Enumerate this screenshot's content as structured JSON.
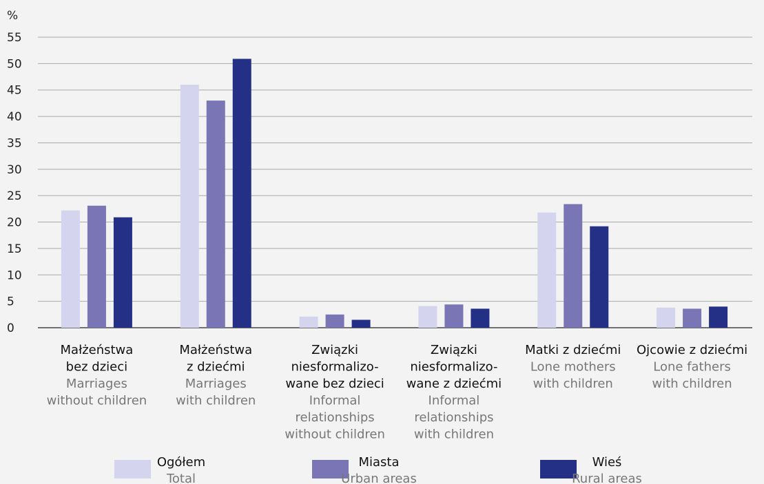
{
  "chart_data": {
    "type": "bar",
    "y_unit_label": "%",
    "ylim": [
      0,
      55
    ],
    "yticks": [
      0,
      5,
      10,
      15,
      20,
      25,
      30,
      35,
      40,
      45,
      50,
      55
    ],
    "grid": true,
    "legend_position": "bottom",
    "categories": [
      {
        "pl": [
          "Małżeństwa",
          "bez dzieci"
        ],
        "en": [
          "Marriages",
          "without children"
        ]
      },
      {
        "pl": [
          "Małżeństwa",
          "z dziećmi"
        ],
        "en": [
          "Marriages",
          "with children"
        ]
      },
      {
        "pl": [
          "Związki",
          "niesformalizo-",
          "wane bez dzieci"
        ],
        "en": [
          "Informal",
          "relationships",
          "without children"
        ]
      },
      {
        "pl": [
          "Związki",
          "niesformalizo-",
          "wane z dziećmi"
        ],
        "en": [
          "Informal",
          "relationships",
          "with children"
        ]
      },
      {
        "pl": [
          "Matki z dziećmi"
        ],
        "en": [
          "Lone mothers",
          "with children"
        ]
      },
      {
        "pl": [
          "Ojcowie z dziećmi"
        ],
        "en": [
          "Lone fathers",
          "with children"
        ]
      }
    ],
    "series": [
      {
        "name": "Ogółem",
        "name_en": "Total",
        "color": "#d4d4ee",
        "values": [
          22.2,
          46.0,
          2.1,
          4.1,
          21.8,
          3.8
        ]
      },
      {
        "name": "Miasta",
        "name_en": "Urban areas",
        "color": "#7a76b6",
        "values": [
          23.1,
          43.0,
          2.5,
          4.4,
          23.4,
          3.6
        ]
      },
      {
        "name": "Wieś",
        "name_en": "Rural areas",
        "color": "#242f86",
        "values": [
          20.9,
          50.9,
          1.5,
          3.6,
          19.2,
          4.0
        ]
      }
    ]
  }
}
